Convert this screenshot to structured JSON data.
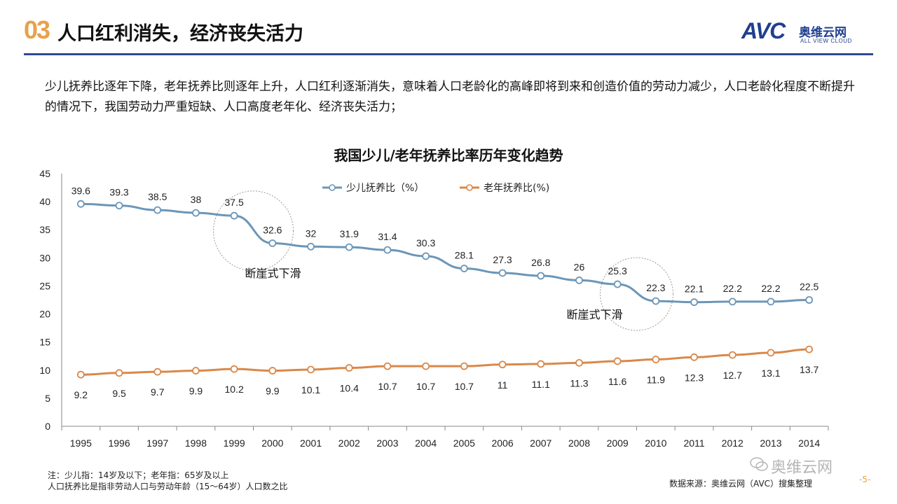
{
  "header": {
    "number": "03",
    "title": "人口红利消失，经济丧失活力",
    "logo_text": "AVC",
    "logo_cn": "奥维云网",
    "logo_en": "ALL VIEW CLOUD"
  },
  "description": "少儿抚养比逐年下降，老年抚养比则逐年上升，人口红利逐渐消失，意味着人口老龄化的高峰即将到来和创造价值的劳动力减少，人口老龄化程度不断提升的情况下，我国劳动力严重短缺、人口高度老年化、经济丧失活力；",
  "chart_data": {
    "type": "line",
    "title": "我国少儿/老年抚养比率历年变化趋势",
    "x": [
      "1995",
      "1996",
      "1997",
      "1998",
      "1999",
      "2000",
      "2001",
      "2002",
      "2003",
      "2004",
      "2005",
      "2006",
      "2007",
      "2008",
      "2009",
      "2010",
      "2011",
      "2012",
      "2013",
      "2014"
    ],
    "ylim": [
      0,
      45
    ],
    "yticks": [
      0,
      5,
      10,
      15,
      20,
      25,
      30,
      35,
      40,
      45
    ],
    "legend_position": "top",
    "series": [
      {
        "name": "少儿抚养比（%）",
        "color": "#6b96b8",
        "values": [
          39.6,
          39.3,
          38.5,
          38,
          37.5,
          32.6,
          32,
          31.9,
          31.4,
          30.3,
          28.1,
          27.3,
          26.8,
          26,
          25.3,
          22.3,
          22.1,
          22.2,
          22.2,
          22.5
        ]
      },
      {
        "name": "老年抚养比(%)",
        "color": "#d9884a",
        "values": [
          9.2,
          9.5,
          9.7,
          9.9,
          10.2,
          9.9,
          10.1,
          10.4,
          10.7,
          10.7,
          10.7,
          11,
          11.1,
          11.3,
          11.6,
          11.9,
          12.3,
          12.7,
          13.1,
          13.7
        ]
      }
    ],
    "annotations": [
      {
        "text": "断崖式下滑",
        "near_year": "1999"
      },
      {
        "text": "断崖式下滑",
        "near_year": "2009"
      }
    ]
  },
  "footer": {
    "note_line1": "注：少儿指：14岁及以下；老年指：65岁及以上",
    "note_line2": "人口抚养比是指非劳动人口与劳动年龄（15～64岁）人口数之比",
    "source": "数据来源：奥维云网（AVC）搜集整理",
    "page": "-5-",
    "watermark": "奥维云网"
  }
}
